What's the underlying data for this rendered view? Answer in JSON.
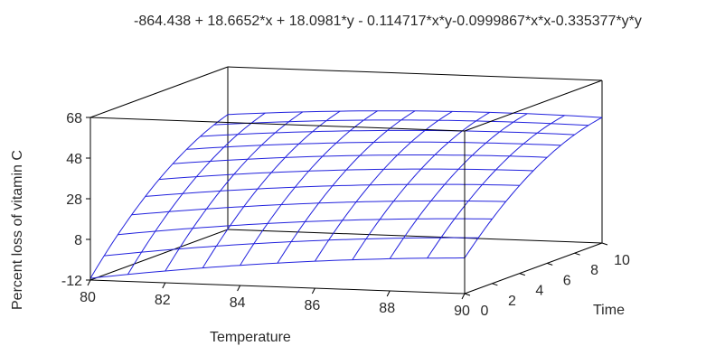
{
  "chart_data": {
    "type": "surface",
    "title": "-864.438 + 18.6652*x + 18.0981*y - 0.114717*x*y-0.0999867*x*x-0.335377*y*y",
    "xlabel": "Temperature",
    "ylabel": "Time",
    "zlabel": "Percent loss of vitamin C",
    "xlim": [
      80,
      90
    ],
    "ylim": [
      0,
      10
    ],
    "zlim": [
      -12,
      68
    ],
    "x_ticks": [
      80,
      82,
      84,
      86,
      88,
      90
    ],
    "y_ticks": [
      0,
      2,
      4,
      6,
      8,
      10
    ],
    "z_ticks": [
      -12,
      8,
      28,
      48,
      68
    ],
    "coefficients": {
      "intercept": -864.438,
      "x": 18.6652,
      "y": 18.0981,
      "xy": -0.114717,
      "xx": -0.0999867,
      "yy": -0.335377
    },
    "grid_lines": 11,
    "surface_color": "#2222dd",
    "box_color": "#000000"
  }
}
